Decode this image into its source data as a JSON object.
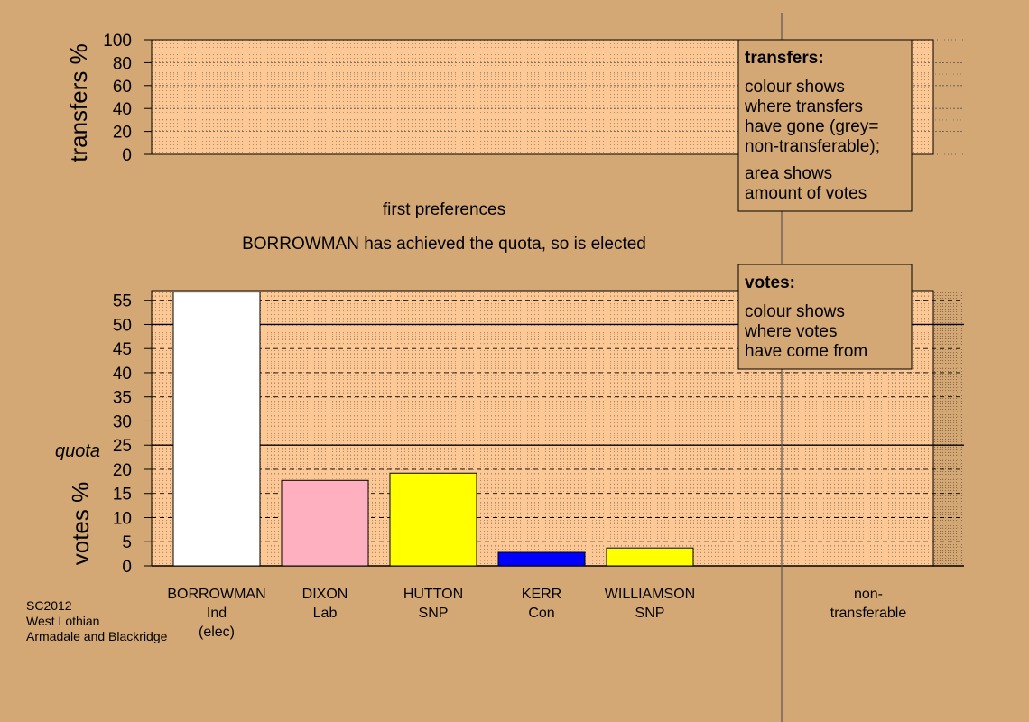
{
  "chart_data": [
    {
      "type": "bar",
      "title": "",
      "ylabel": "transfers %",
      "ylim": [
        0,
        100
      ],
      "yticks": [
        0,
        20,
        40,
        60,
        80,
        100
      ],
      "series": []
    },
    {
      "type": "bar",
      "ylabel": "votes %",
      "ylim": [
        0,
        57
      ],
      "yticks": [
        0,
        5,
        10,
        15,
        20,
        25,
        30,
        35,
        40,
        45,
        50,
        55
      ],
      "quota": 25,
      "quota_label": "quota",
      "categories": [
        {
          "name": "BORROWMAN",
          "party": "Ind",
          "note": "(elec)",
          "value": 56.7,
          "color": "#ffffff"
        },
        {
          "name": "DIXON",
          "party": "Lab",
          "note": "",
          "value": 17.7,
          "color": "#ffb0c0"
        },
        {
          "name": "HUTTON",
          "party": "SNP",
          "note": "",
          "value": 19.2,
          "color": "#ffff00"
        },
        {
          "name": "KERR",
          "party": "Con",
          "note": "",
          "value": 2.8,
          "color": "#0000ff"
        },
        {
          "name": "WILLIAMSON",
          "party": "SNP",
          "note": "",
          "value": 3.7,
          "color": "#ffff00"
        }
      ],
      "nontransferable_label": [
        "non-",
        "transferable"
      ],
      "nontransferable_value": 0
    }
  ],
  "messages": {
    "stage": "first preferences",
    "status": "BORROWMAN has achieved the quota, so is elected"
  },
  "legends": {
    "transfers": {
      "title": "transfers:",
      "lines1": [
        "colour shows",
        "where transfers",
        "have gone (grey=",
        "non-transferable);"
      ],
      "lines2": [
        "area shows",
        "amount of votes"
      ]
    },
    "votes": {
      "title": "votes:",
      "lines": [
        "colour shows",
        "where votes",
        "have come from"
      ]
    }
  },
  "footer": [
    "SC2012",
    "West Lothian",
    "Armadale and Blackridge"
  ],
  "colors": {
    "background": "#d4a874",
    "plot_fill": "#fcc896"
  }
}
